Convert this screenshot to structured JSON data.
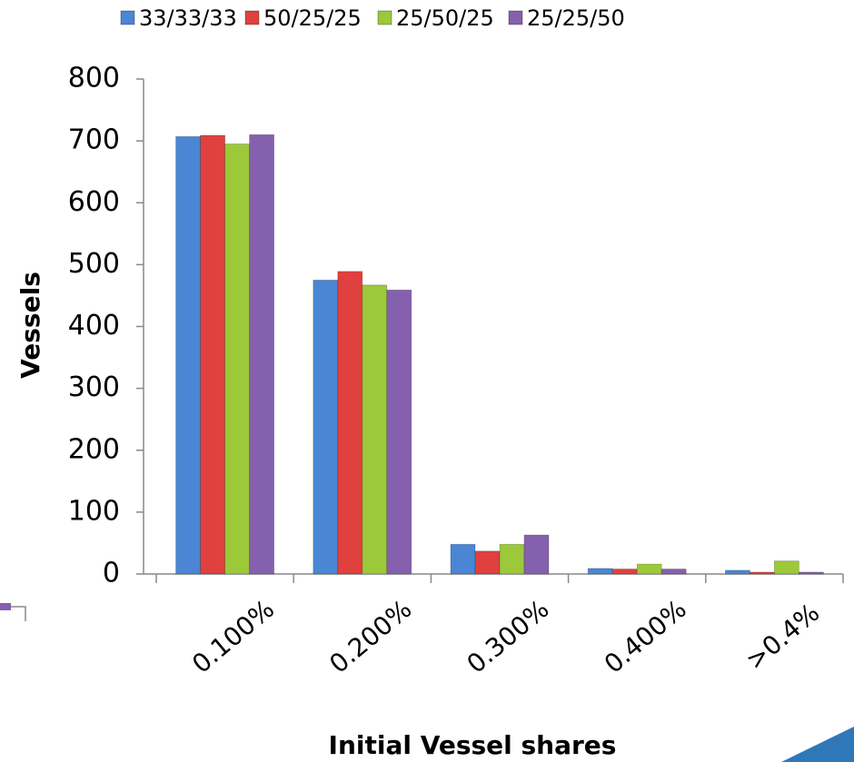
{
  "chart_data": {
    "type": "bar",
    "xlabel": "Initial Vessel shares",
    "ylabel": "Vessels",
    "categories": [
      "0.100%",
      "0.200%",
      "0.300%",
      "0.400%",
      ">0.4%"
    ],
    "series": [
      {
        "name": "33/33/33",
        "color": "#4a86d4",
        "values": [
          707,
          475,
          48,
          9,
          6
        ]
      },
      {
        "name": "50/25/25",
        "color": "#e0403e",
        "values": [
          709,
          489,
          37,
          8,
          3
        ]
      },
      {
        "name": "25/50/25",
        "color": "#9bc93a",
        "values": [
          695,
          467,
          48,
          16,
          21
        ]
      },
      {
        "name": "25/25/50",
        "color": "#8560ae",
        "values": [
          710,
          459,
          63,
          8,
          3
        ]
      }
    ],
    "ylim": [
      0,
      800
    ],
    "yticks": [
      0,
      100,
      200,
      300,
      400,
      500,
      600,
      700,
      800
    ],
    "legend": "top"
  }
}
